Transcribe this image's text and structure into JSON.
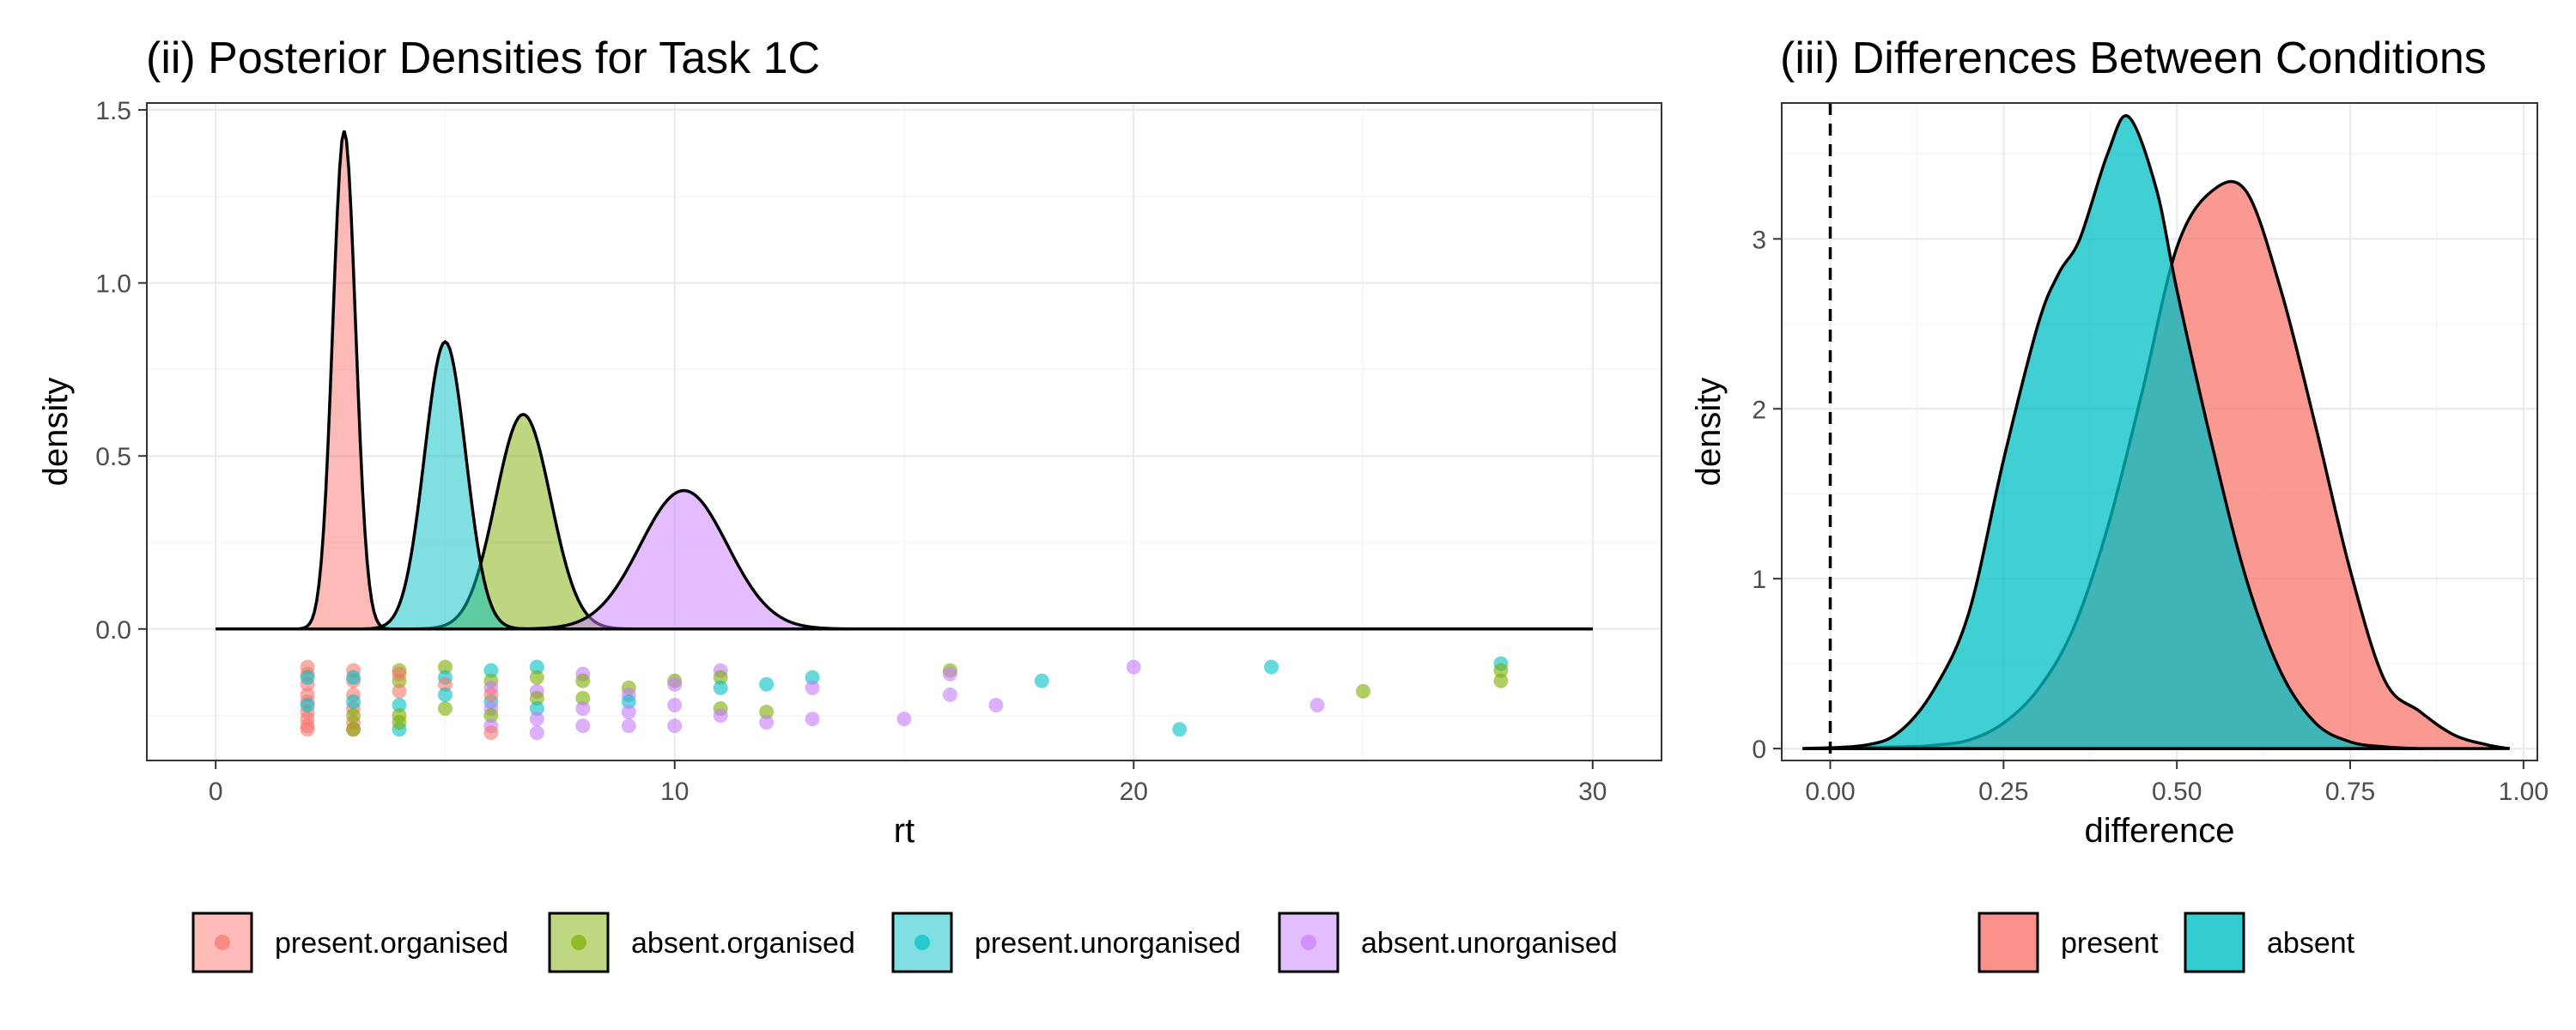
{
  "chart_data": [
    {
      "type": "area",
      "panel": "left",
      "title": "(ii) Posterior Densities for Task 1C",
      "xlabel": "rt",
      "ylabel": "density",
      "xlim": [
        -1.5,
        31.5
      ],
      "ylim": [
        -0.38,
        1.52
      ],
      "xticks": [
        0,
        10,
        20,
        30
      ],
      "xtick_labels": [
        "0",
        "10",
        "20",
        "30"
      ],
      "yticks": [
        0.0,
        0.5,
        1.0,
        1.5
      ],
      "ytick_labels": [
        "0.0",
        "0.5",
        "1.0",
        "1.5"
      ],
      "grid": true,
      "legend_position": "bottom",
      "series": [
        {
          "name": "present.organised",
          "color": "#F8766D",
          "peak_x": 2.8,
          "peak_y": 1.44,
          "spread": 0.25
        },
        {
          "name": "absent.organised",
          "color": "#7CAE00",
          "peak_x": 6.7,
          "peak_y": 0.62,
          "spread": 0.6
        },
        {
          "name": "present.unorganised",
          "color": "#00BFC4",
          "peak_x": 5.0,
          "peak_y": 0.83,
          "spread": 0.45
        },
        {
          "name": "absent.unorganised",
          "color": "#C77CFF",
          "peak_x": 10.2,
          "peak_y": 0.4,
          "spread": 0.95
        }
      ],
      "points": [
        {
          "x": 2,
          "y": -0.11,
          "g": 0
        },
        {
          "x": 2,
          "y": -0.13,
          "g": 0
        },
        {
          "x": 2,
          "y": -0.16,
          "g": 0
        },
        {
          "x": 2,
          "y": -0.19,
          "g": 0
        },
        {
          "x": 2,
          "y": -0.21,
          "g": 0
        },
        {
          "x": 2,
          "y": -0.24,
          "g": 0
        },
        {
          "x": 2,
          "y": -0.26,
          "g": 0
        },
        {
          "x": 2,
          "y": -0.28,
          "g": 0
        },
        {
          "x": 2,
          "y": -0.29,
          "g": 0
        },
        {
          "x": 2,
          "y": -0.14,
          "g": 2
        },
        {
          "x": 2,
          "y": -0.22,
          "g": 2
        },
        {
          "x": 3,
          "y": -0.12,
          "g": 0
        },
        {
          "x": 3,
          "y": -0.15,
          "g": 0
        },
        {
          "x": 3,
          "y": -0.19,
          "g": 0
        },
        {
          "x": 3,
          "y": -0.23,
          "g": 0
        },
        {
          "x": 3,
          "y": -0.27,
          "g": 0
        },
        {
          "x": 3,
          "y": -0.29,
          "g": 0
        },
        {
          "x": 3,
          "y": -0.14,
          "g": 2
        },
        {
          "x": 3,
          "y": -0.21,
          "g": 2
        },
        {
          "x": 3,
          "y": -0.25,
          "g": 1
        },
        {
          "x": 3,
          "y": -0.29,
          "g": 1
        },
        {
          "x": 4,
          "y": -0.12,
          "g": 1
        },
        {
          "x": 4,
          "y": -0.15,
          "g": 1
        },
        {
          "x": 4,
          "y": -0.22,
          "g": 2
        },
        {
          "x": 4,
          "y": -0.25,
          "g": 1
        },
        {
          "x": 4,
          "y": -0.29,
          "g": 2
        },
        {
          "x": 4,
          "y": -0.13,
          "g": 0
        },
        {
          "x": 4,
          "y": -0.18,
          "g": 0
        },
        {
          "x": 4,
          "y": -0.27,
          "g": 1
        },
        {
          "x": 5,
          "y": -0.11,
          "g": 1
        },
        {
          "x": 5,
          "y": -0.14,
          "g": 2
        },
        {
          "x": 5,
          "y": -0.16,
          "g": 0
        },
        {
          "x": 5,
          "y": -0.23,
          "g": 1
        },
        {
          "x": 5,
          "y": -0.19,
          "g": 2
        },
        {
          "x": 6,
          "y": -0.12,
          "g": 2
        },
        {
          "x": 6,
          "y": -0.15,
          "g": 1
        },
        {
          "x": 6,
          "y": -0.17,
          "g": 3
        },
        {
          "x": 6,
          "y": -0.21,
          "g": 2
        },
        {
          "x": 6,
          "y": -0.23,
          "g": 3
        },
        {
          "x": 6,
          "y": -0.25,
          "g": 1
        },
        {
          "x": 6,
          "y": -0.28,
          "g": 3
        },
        {
          "x": 6,
          "y": -0.3,
          "g": 0
        },
        {
          "x": 6,
          "y": -0.19,
          "g": 0
        },
        {
          "x": 7,
          "y": -0.11,
          "g": 2
        },
        {
          "x": 7,
          "y": -0.14,
          "g": 1
        },
        {
          "x": 7,
          "y": -0.18,
          "g": 3
        },
        {
          "x": 7,
          "y": -0.2,
          "g": 1
        },
        {
          "x": 7,
          "y": -0.23,
          "g": 2
        },
        {
          "x": 7,
          "y": -0.26,
          "g": 3
        },
        {
          "x": 7,
          "y": -0.3,
          "g": 3
        },
        {
          "x": 8,
          "y": -0.13,
          "g": 3
        },
        {
          "x": 8,
          "y": -0.15,
          "g": 1
        },
        {
          "x": 8,
          "y": -0.2,
          "g": 1
        },
        {
          "x": 8,
          "y": -0.23,
          "g": 3
        },
        {
          "x": 8,
          "y": -0.28,
          "g": 3
        },
        {
          "x": 9,
          "y": -0.17,
          "g": 1
        },
        {
          "x": 9,
          "y": -0.19,
          "g": 3
        },
        {
          "x": 9,
          "y": -0.21,
          "g": 2
        },
        {
          "x": 9,
          "y": -0.24,
          "g": 3
        },
        {
          "x": 9,
          "y": -0.28,
          "g": 3
        },
        {
          "x": 10,
          "y": -0.15,
          "g": 1
        },
        {
          "x": 10,
          "y": -0.16,
          "g": 3
        },
        {
          "x": 10,
          "y": -0.22,
          "g": 3
        },
        {
          "x": 10,
          "y": -0.28,
          "g": 3
        },
        {
          "x": 11,
          "y": -0.12,
          "g": 3
        },
        {
          "x": 11,
          "y": -0.14,
          "g": 1
        },
        {
          "x": 11,
          "y": -0.17,
          "g": 2
        },
        {
          "x": 11,
          "y": -0.23,
          "g": 1
        },
        {
          "x": 11,
          "y": -0.25,
          "g": 3
        },
        {
          "x": 12,
          "y": -0.16,
          "g": 2
        },
        {
          "x": 12,
          "y": -0.24,
          "g": 1
        },
        {
          "x": 12,
          "y": -0.27,
          "g": 3
        },
        {
          "x": 13,
          "y": -0.14,
          "g": 2
        },
        {
          "x": 13,
          "y": -0.17,
          "g": 3
        },
        {
          "x": 13,
          "y": -0.26,
          "g": 3
        },
        {
          "x": 15,
          "y": -0.26,
          "g": 3
        },
        {
          "x": 16,
          "y": -0.12,
          "g": 1
        },
        {
          "x": 16,
          "y": -0.13,
          "g": 3
        },
        {
          "x": 16,
          "y": -0.19,
          "g": 3
        },
        {
          "x": 17,
          "y": -0.22,
          "g": 3
        },
        {
          "x": 18,
          "y": -0.15,
          "g": 2
        },
        {
          "x": 20,
          "y": -0.11,
          "g": 3
        },
        {
          "x": 21,
          "y": -0.29,
          "g": 2
        },
        {
          "x": 23,
          "y": -0.11,
          "g": 2
        },
        {
          "x": 24,
          "y": -0.22,
          "g": 3
        },
        {
          "x": 25,
          "y": -0.18,
          "g": 1
        },
        {
          "x": 28,
          "y": -0.1,
          "g": 2
        },
        {
          "x": 28,
          "y": -0.12,
          "g": 1
        },
        {
          "x": 28,
          "y": -0.15,
          "g": 1
        }
      ]
    },
    {
      "type": "area",
      "panel": "right",
      "title": "(iii) Differences Between Conditions",
      "xlabel": "difference",
      "ylabel": "density",
      "xlim": [
        -0.07,
        1.02
      ],
      "ylim": [
        -0.07,
        3.8
      ],
      "xticks": [
        0.0,
        0.25,
        0.5,
        0.75,
        1.0
      ],
      "xtick_labels": [
        "0.00",
        "0.25",
        "0.50",
        "0.75",
        "1.00"
      ],
      "yticks": [
        0,
        1,
        2,
        3
      ],
      "ytick_labels": [
        "0",
        "1",
        "2",
        "3"
      ],
      "grid": true,
      "reference_line_x": 0,
      "legend_position": "bottom",
      "series": [
        {
          "name": "present",
          "color": "#F8766D",
          "x": [
            -0.04,
            0.1,
            0.15,
            0.2,
            0.25,
            0.3,
            0.35,
            0.4,
            0.45,
            0.5,
            0.55,
            0.6,
            0.65,
            0.7,
            0.75,
            0.8,
            0.85,
            0.9,
            0.95,
            0.98
          ],
          "y": [
            0.0,
            0.01,
            0.02,
            0.05,
            0.15,
            0.35,
            0.7,
            1.3,
            2.1,
            2.95,
            3.28,
            3.28,
            2.7,
            1.9,
            1.05,
            0.4,
            0.22,
            0.08,
            0.02,
            0.0
          ]
        },
        {
          "name": "absent",
          "color": "#00BFC4",
          "x": [
            -0.04,
            0.05,
            0.1,
            0.15,
            0.2,
            0.25,
            0.3,
            0.33,
            0.36,
            0.4,
            0.43,
            0.47,
            0.5,
            0.55,
            0.6,
            0.65,
            0.7,
            0.75,
            0.8,
            0.85
          ],
          "y": [
            0.0,
            0.02,
            0.1,
            0.35,
            0.8,
            1.7,
            2.5,
            2.8,
            3.0,
            3.5,
            3.72,
            3.3,
            2.7,
            1.8,
            1.0,
            0.45,
            0.15,
            0.04,
            0.01,
            0.0
          ]
        }
      ]
    }
  ]
}
